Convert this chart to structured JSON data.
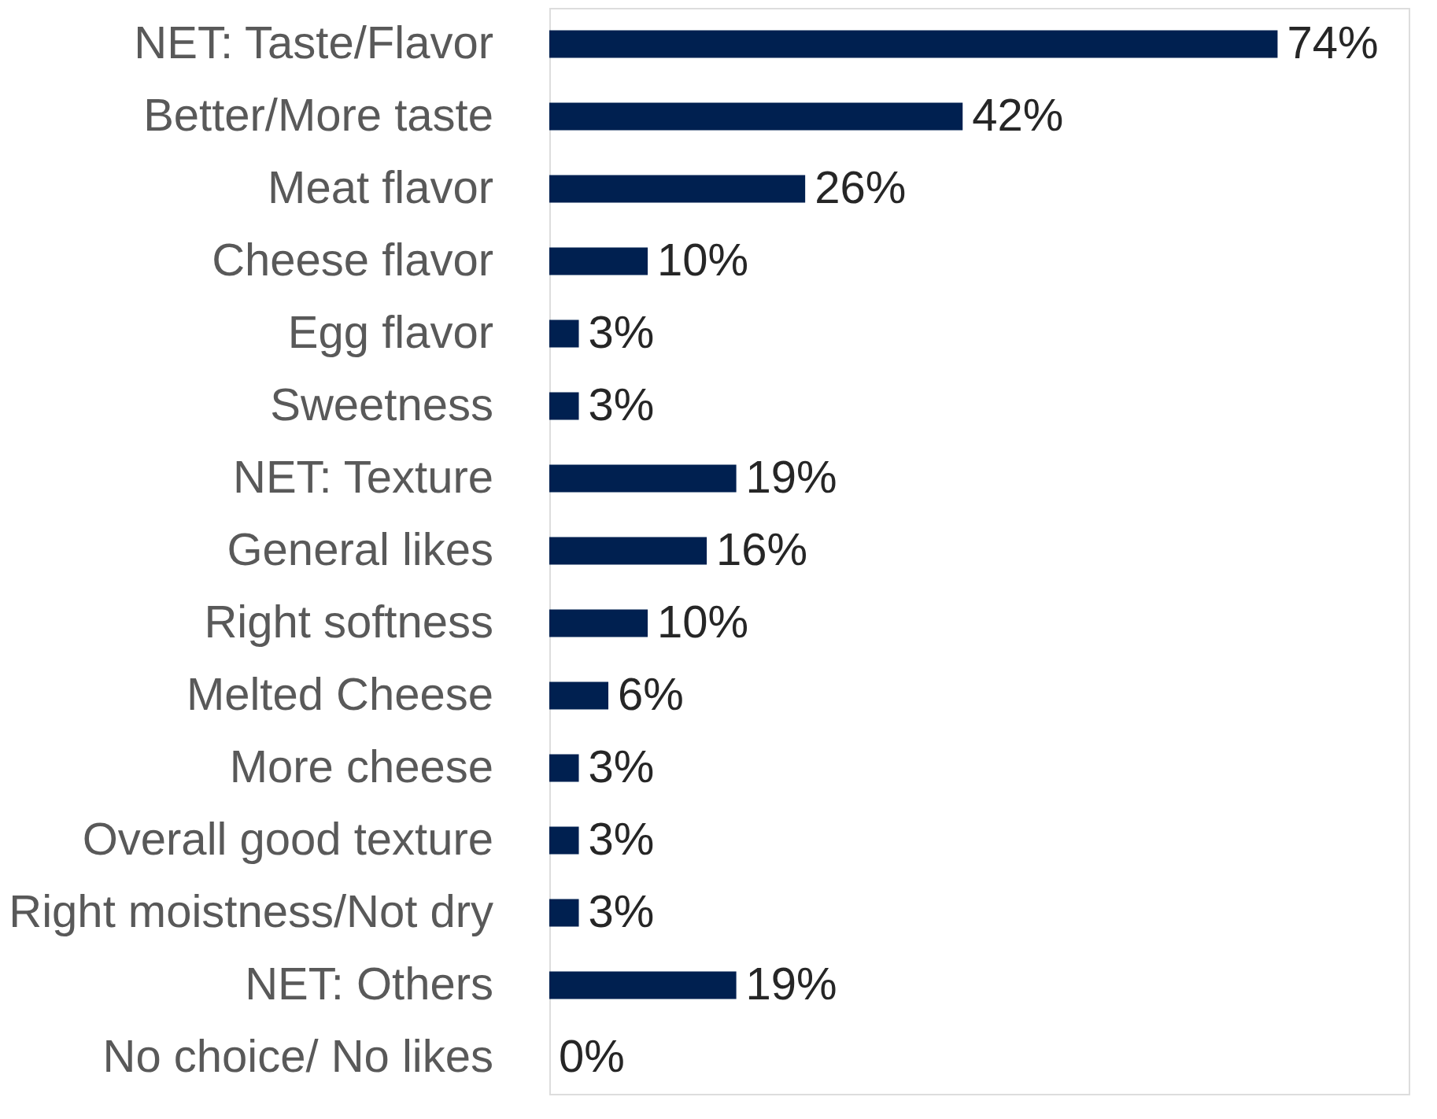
{
  "chart_data": {
    "type": "bar",
    "orientation": "horizontal",
    "categories": [
      "NET: Taste/Flavor",
      "Better/More taste",
      "Meat flavor",
      "Cheese flavor",
      "Egg flavor",
      "Sweetness",
      "NET: Texture",
      "General likes",
      "Right softness",
      "Melted Cheese",
      "More cheese",
      "Overall good texture",
      "Right moistness/Not dry",
      "NET: Others",
      "No choice/ No likes"
    ],
    "values": [
      74,
      42,
      26,
      10,
      3,
      3,
      19,
      16,
      10,
      6,
      3,
      3,
      3,
      19,
      0
    ],
    "value_labels": [
      "74%",
      "42%",
      "26%",
      "10%",
      "3%",
      "3%",
      "19%",
      "16%",
      "10%",
      "6%",
      "3%",
      "3%",
      "3%",
      "19%",
      "0%"
    ],
    "color": "#002050",
    "tick_labels": "y"
  }
}
